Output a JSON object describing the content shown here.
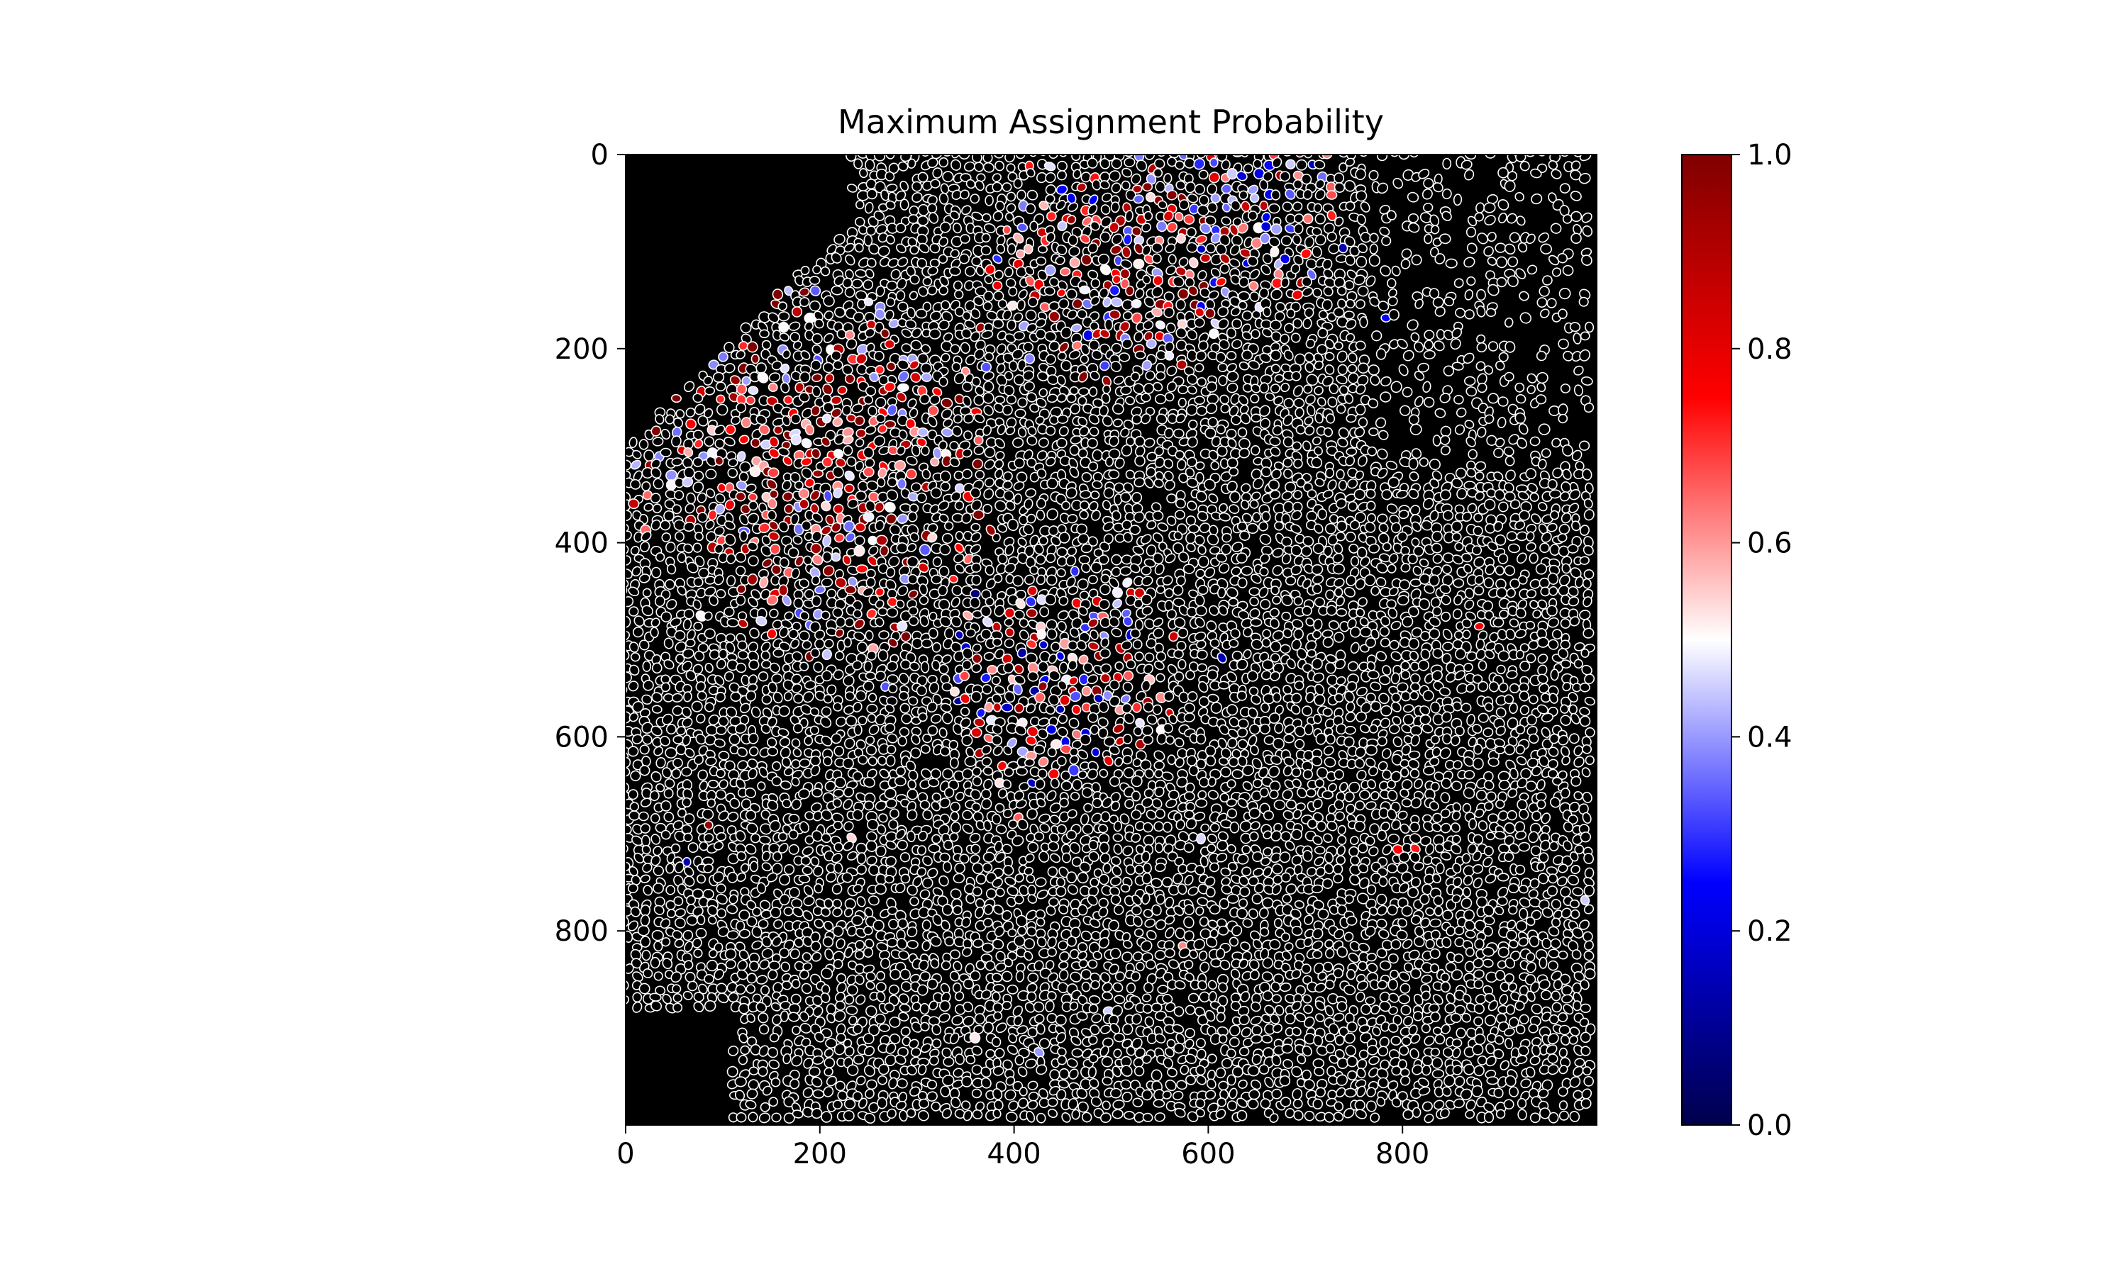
{
  "chart_data": {
    "type": "heatmap",
    "title": "Maximum Assignment Probability",
    "xlabel": "",
    "ylabel": "",
    "xlim": [
      0,
      1000
    ],
    "ylim": [
      1000,
      0
    ],
    "x_ticks": [
      "0",
      "200",
      "400",
      "600",
      "800"
    ],
    "y_ticks": [
      "0",
      "200",
      "400",
      "600",
      "800"
    ],
    "grid": false,
    "background": "#000000",
    "cell_outline": "#ffffff",
    "colormap": "seismic",
    "colorbar": {
      "vmin": 0.0,
      "vmax": 1.0,
      "ticks": [
        "0.0",
        "0.2",
        "0.4",
        "0.6",
        "0.8",
        "1.0"
      ],
      "stops": [
        "#00004c",
        "#0000ff",
        "#ffffff",
        "#ff0000",
        "#800000"
      ],
      "placement": "right"
    },
    "regions": [
      {
        "x": 200,
        "y": 320,
        "r": 200,
        "mean_value": 0.7
      },
      {
        "x": 500,
        "y": 100,
        "r": 140,
        "mean_value": 0.6
      },
      {
        "x": 450,
        "y": 540,
        "r": 130,
        "mean_value": 0.5
      },
      {
        "x": 650,
        "y": 60,
        "r": 100,
        "mean_value": 0.5
      }
    ]
  }
}
